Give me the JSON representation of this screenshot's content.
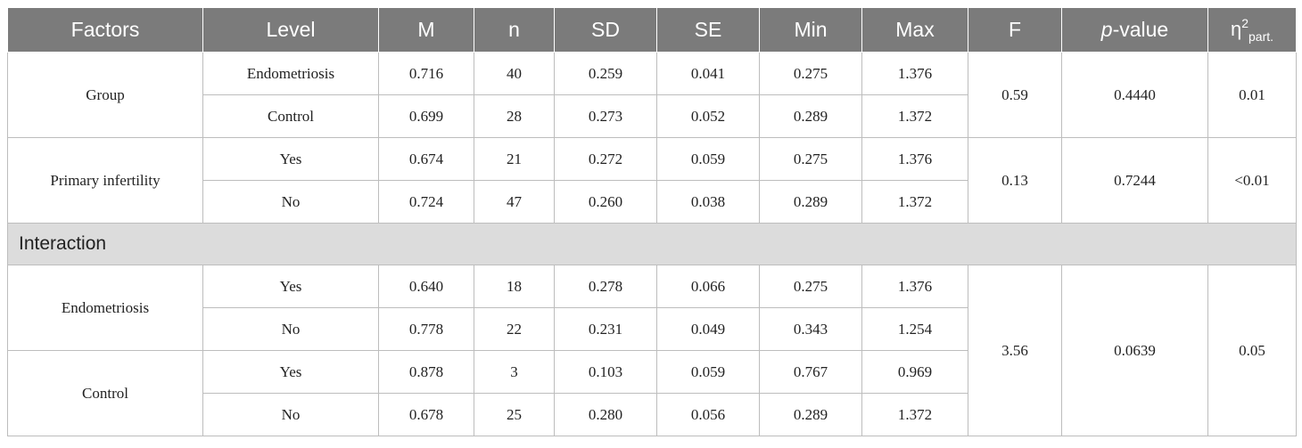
{
  "header": {
    "factors": "Factors",
    "level": "Level",
    "m": "M",
    "n": "n",
    "sd": "SD",
    "se": "SE",
    "min": "Min",
    "max": "Max",
    "f": "F",
    "p_italic": "p",
    "p_rest": "-value",
    "eta": "η",
    "eta_sup": "2",
    "eta_sub": "part."
  },
  "main_effects": [
    {
      "factor": "Group",
      "f": "0.59",
      "p": "0.4440",
      "eta": "0.01",
      "levels": [
        {
          "level": "Endometriosis",
          "m": "0.716",
          "n": "40",
          "sd": "0.259",
          "se": "0.041",
          "min": "0.275",
          "max": "1.376"
        },
        {
          "level": "Control",
          "m": "0.699",
          "n": "28",
          "sd": "0.273",
          "se": "0.052",
          "min": "0.289",
          "max": "1.372"
        }
      ]
    },
    {
      "factor": "Primary infertility",
      "f": "0.13",
      "p": "0.7244",
      "eta": "<0.01",
      "levels": [
        {
          "level": "Yes",
          "m": "0.674",
          "n": "21",
          "sd": "0.272",
          "se": "0.059",
          "min": "0.275",
          "max": "1.376"
        },
        {
          "level": "No",
          "m": "0.724",
          "n": "47",
          "sd": "0.260",
          "se": "0.038",
          "min": "0.289",
          "max": "1.372"
        }
      ]
    }
  ],
  "interaction": {
    "label": "Interaction",
    "f": "3.56",
    "p": "0.0639",
    "eta": "0.05",
    "groups": [
      {
        "factor": "Endometriosis",
        "levels": [
          {
            "level": "Yes",
            "m": "0.640",
            "n": "18",
            "sd": "0.278",
            "se": "0.066",
            "min": "0.275",
            "max": "1.376"
          },
          {
            "level": "No",
            "m": "0.778",
            "n": "22",
            "sd": "0.231",
            "se": "0.049",
            "min": "0.343",
            "max": "1.254"
          }
        ]
      },
      {
        "factor": "Control",
        "levels": [
          {
            "level": "Yes",
            "m": "0.878",
            "n": "3",
            "sd": "0.103",
            "se": "0.059",
            "min": "0.767",
            "max": "0.969"
          },
          {
            "level": "No",
            "m": "0.678",
            "n": "25",
            "sd": "0.280",
            "se": "0.056",
            "min": "0.289",
            "max": "1.372"
          }
        ]
      }
    ]
  }
}
